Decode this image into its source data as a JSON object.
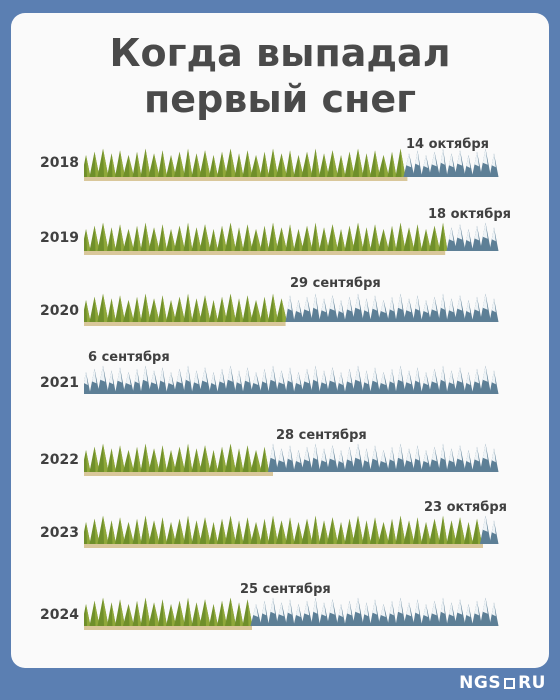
{
  "title_line1": "Когда выпадал",
  "title_line2": "первый снег",
  "colors": {
    "background": "#5b7fb2",
    "card": "#fafafa",
    "green_tree": "#6f8f2a",
    "snow_tree": "#5d7f96",
    "ground_green": "#d9c79a",
    "ground_snow": "#ffffff"
  },
  "rows": [
    {
      "year": "2018",
      "date": "14 октября",
      "snow_fraction": 0.23
    },
    {
      "year": "2019",
      "date": "18 октября",
      "snow_fraction": 0.14
    },
    {
      "year": "2020",
      "date": "29 сентября",
      "snow_fraction": 0.52
    },
    {
      "year": "2021",
      "date": "6 сентября",
      "snow_fraction": 1.0
    },
    {
      "year": "2022",
      "date": "28 сентября",
      "snow_fraction": 0.55
    },
    {
      "year": "2023",
      "date": "23 октября",
      "snow_fraction": 0.05
    },
    {
      "year": "2024",
      "date": "25 сентября",
      "snow_fraction": 0.6
    }
  ],
  "logo": {
    "left": "NGS",
    "right": "RU"
  }
}
